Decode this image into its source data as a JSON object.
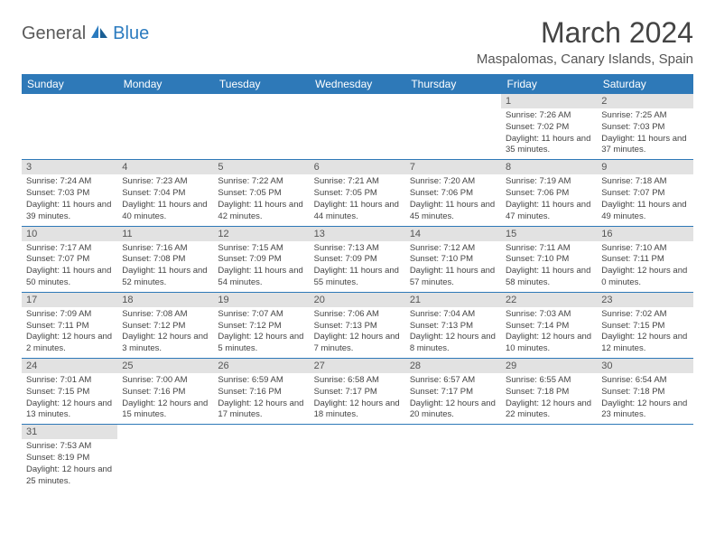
{
  "logo": {
    "part1": "General",
    "part2": "Blue"
  },
  "title": "March 2024",
  "location": "Maspalomas, Canary Islands, Spain",
  "colors": {
    "header_bg": "#2e79b8",
    "header_text": "#ffffff",
    "daynum_bg": "#e2e2e2",
    "rule": "#2e79b8"
  },
  "dayHeaders": [
    "Sunday",
    "Monday",
    "Tuesday",
    "Wednesday",
    "Thursday",
    "Friday",
    "Saturday"
  ],
  "weeks": [
    [
      null,
      null,
      null,
      null,
      null,
      {
        "n": "1",
        "sr": "7:26 AM",
        "ss": "7:02 PM",
        "dl": "11 hours and 35 minutes."
      },
      {
        "n": "2",
        "sr": "7:25 AM",
        "ss": "7:03 PM",
        "dl": "11 hours and 37 minutes."
      }
    ],
    [
      {
        "n": "3",
        "sr": "7:24 AM",
        "ss": "7:03 PM",
        "dl": "11 hours and 39 minutes."
      },
      {
        "n": "4",
        "sr": "7:23 AM",
        "ss": "7:04 PM",
        "dl": "11 hours and 40 minutes."
      },
      {
        "n": "5",
        "sr": "7:22 AM",
        "ss": "7:05 PM",
        "dl": "11 hours and 42 minutes."
      },
      {
        "n": "6",
        "sr": "7:21 AM",
        "ss": "7:05 PM",
        "dl": "11 hours and 44 minutes."
      },
      {
        "n": "7",
        "sr": "7:20 AM",
        "ss": "7:06 PM",
        "dl": "11 hours and 45 minutes."
      },
      {
        "n": "8",
        "sr": "7:19 AM",
        "ss": "7:06 PM",
        "dl": "11 hours and 47 minutes."
      },
      {
        "n": "9",
        "sr": "7:18 AM",
        "ss": "7:07 PM",
        "dl": "11 hours and 49 minutes."
      }
    ],
    [
      {
        "n": "10",
        "sr": "7:17 AM",
        "ss": "7:07 PM",
        "dl": "11 hours and 50 minutes."
      },
      {
        "n": "11",
        "sr": "7:16 AM",
        "ss": "7:08 PM",
        "dl": "11 hours and 52 minutes."
      },
      {
        "n": "12",
        "sr": "7:15 AM",
        "ss": "7:09 PM",
        "dl": "11 hours and 54 minutes."
      },
      {
        "n": "13",
        "sr": "7:13 AM",
        "ss": "7:09 PM",
        "dl": "11 hours and 55 minutes."
      },
      {
        "n": "14",
        "sr": "7:12 AM",
        "ss": "7:10 PM",
        "dl": "11 hours and 57 minutes."
      },
      {
        "n": "15",
        "sr": "7:11 AM",
        "ss": "7:10 PM",
        "dl": "11 hours and 58 minutes."
      },
      {
        "n": "16",
        "sr": "7:10 AM",
        "ss": "7:11 PM",
        "dl": "12 hours and 0 minutes."
      }
    ],
    [
      {
        "n": "17",
        "sr": "7:09 AM",
        "ss": "7:11 PM",
        "dl": "12 hours and 2 minutes."
      },
      {
        "n": "18",
        "sr": "7:08 AM",
        "ss": "7:12 PM",
        "dl": "12 hours and 3 minutes."
      },
      {
        "n": "19",
        "sr": "7:07 AM",
        "ss": "7:12 PM",
        "dl": "12 hours and 5 minutes."
      },
      {
        "n": "20",
        "sr": "7:06 AM",
        "ss": "7:13 PM",
        "dl": "12 hours and 7 minutes."
      },
      {
        "n": "21",
        "sr": "7:04 AM",
        "ss": "7:13 PM",
        "dl": "12 hours and 8 minutes."
      },
      {
        "n": "22",
        "sr": "7:03 AM",
        "ss": "7:14 PM",
        "dl": "12 hours and 10 minutes."
      },
      {
        "n": "23",
        "sr": "7:02 AM",
        "ss": "7:15 PM",
        "dl": "12 hours and 12 minutes."
      }
    ],
    [
      {
        "n": "24",
        "sr": "7:01 AM",
        "ss": "7:15 PM",
        "dl": "12 hours and 13 minutes."
      },
      {
        "n": "25",
        "sr": "7:00 AM",
        "ss": "7:16 PM",
        "dl": "12 hours and 15 minutes."
      },
      {
        "n": "26",
        "sr": "6:59 AM",
        "ss": "7:16 PM",
        "dl": "12 hours and 17 minutes."
      },
      {
        "n": "27",
        "sr": "6:58 AM",
        "ss": "7:17 PM",
        "dl": "12 hours and 18 minutes."
      },
      {
        "n": "28",
        "sr": "6:57 AM",
        "ss": "7:17 PM",
        "dl": "12 hours and 20 minutes."
      },
      {
        "n": "29",
        "sr": "6:55 AM",
        "ss": "7:18 PM",
        "dl": "12 hours and 22 minutes."
      },
      {
        "n": "30",
        "sr": "6:54 AM",
        "ss": "7:18 PM",
        "dl": "12 hours and 23 minutes."
      }
    ],
    [
      {
        "n": "31",
        "sr": "7:53 AM",
        "ss": "8:19 PM",
        "dl": "12 hours and 25 minutes."
      },
      null,
      null,
      null,
      null,
      null,
      null
    ]
  ],
  "labels": {
    "sunrise": "Sunrise:",
    "sunset": "Sunset:",
    "daylight": "Daylight:"
  }
}
